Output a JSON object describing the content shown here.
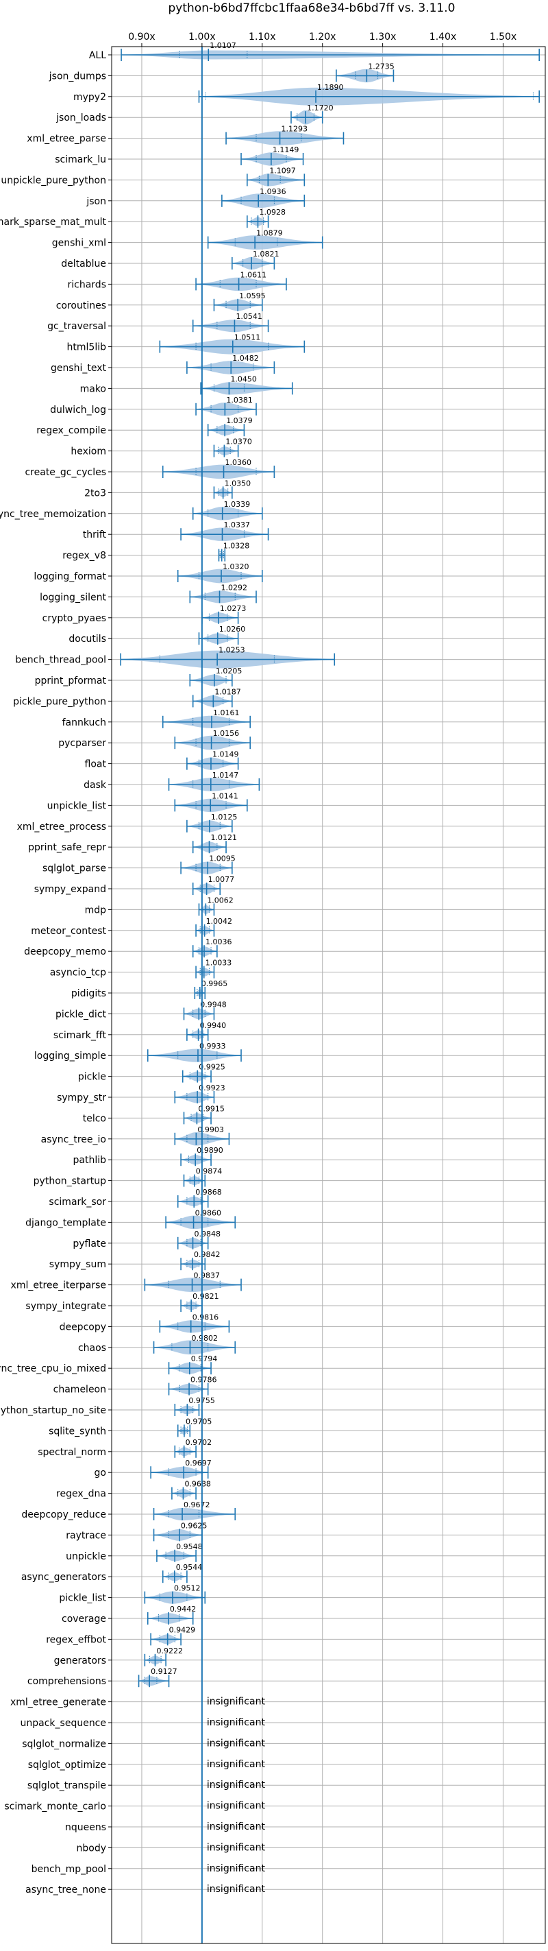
{
  "chart_data": {
    "type": "violin",
    "title": "python-b6bd7ffcbc1ffaa68e34-b6bd7ff vs. 3.11.0",
    "xlabel": "",
    "ylabel": "",
    "xlim": [
      0.85,
      1.57
    ],
    "xticks": [
      0.9,
      1.0,
      1.1,
      1.2,
      1.3,
      1.4,
      1.5
    ],
    "xtick_labels": [
      "0.90x",
      "1.00x",
      "1.10x",
      "1.20x",
      "1.30x",
      "1.40x",
      "1.50x"
    ],
    "grid": true,
    "reference_line": 1.0,
    "rows": [
      {
        "name": "ALL",
        "value": 1.0107,
        "label": "1.0107",
        "lo": 0.866,
        "hi": 1.56,
        "width": 0.5,
        "q1": 0.963,
        "q3": 1.075
      },
      {
        "name": "json_dumps",
        "value": 1.2735,
        "label": "1.2735",
        "lo": 1.223,
        "hi": 1.318,
        "width": 0.75,
        "q1": 1.255,
        "q3": 1.292
      },
      {
        "name": "mypy2",
        "value": 1.189,
        "label": "1.1890",
        "lo": 0.995,
        "hi": 1.56,
        "width": 1.0,
        "q1": 1.006,
        "q3": 1.55
      },
      {
        "name": "json_loads",
        "value": 1.172,
        "label": "1.1720",
        "lo": 1.148,
        "hi": 1.2,
        "width": 0.8,
        "q1": 1.158,
        "q3": 1.186
      },
      {
        "name": "xml_etree_parse",
        "value": 1.1293,
        "label": "1.1293",
        "lo": 1.04,
        "hi": 1.235,
        "width": 0.8,
        "q1": 1.09,
        "q3": 1.165
      },
      {
        "name": "scimark_lu",
        "value": 1.1149,
        "label": "1.1149",
        "lo": 1.065,
        "hi": 1.168,
        "width": 0.75,
        "q1": 1.09,
        "q3": 1.14
      },
      {
        "name": "unpickle_pure_python",
        "value": 1.1097,
        "label": "1.1097",
        "lo": 1.075,
        "hi": 1.17,
        "width": 0.7,
        "q1": 1.095,
        "q3": 1.13
      },
      {
        "name": "json",
        "value": 1.0936,
        "label": "1.0936",
        "lo": 1.033,
        "hi": 1.17,
        "width": 0.8,
        "q1": 1.065,
        "q3": 1.12
      },
      {
        "name": "scimark_sparse_mat_mult",
        "value": 1.0928,
        "label": "1.0928",
        "lo": 1.075,
        "hi": 1.11,
        "width": 0.5,
        "q1": 1.082,
        "q3": 1.102
      },
      {
        "name": "genshi_xml",
        "value": 1.0879,
        "label": "1.0879",
        "lo": 1.01,
        "hi": 1.2,
        "width": 0.8,
        "q1": 1.055,
        "q3": 1.125
      },
      {
        "name": "deltablue",
        "value": 1.0821,
        "label": "1.0821",
        "lo": 1.05,
        "hi": 1.12,
        "width": 0.7,
        "q1": 1.068,
        "q3": 1.1
      },
      {
        "name": "richards",
        "value": 1.0611,
        "label": "1.0611",
        "lo": 0.99,
        "hi": 1.14,
        "width": 0.75,
        "q1": 1.03,
        "q3": 1.09
      },
      {
        "name": "coroutines",
        "value": 1.0595,
        "label": "1.0595",
        "lo": 1.02,
        "hi": 1.1,
        "width": 0.65,
        "q1": 1.04,
        "q3": 1.08
      },
      {
        "name": "gc_traversal",
        "value": 1.0541,
        "label": "1.0541",
        "lo": 0.985,
        "hi": 1.11,
        "width": 0.7,
        "q1": 1.025,
        "q3": 1.08
      },
      {
        "name": "html5lib",
        "value": 1.0511,
        "label": "1.0511",
        "lo": 0.93,
        "hi": 1.17,
        "width": 0.85,
        "q1": 0.99,
        "q3": 1.11
      },
      {
        "name": "genshi_text",
        "value": 1.0482,
        "label": "1.0482",
        "lo": 0.975,
        "hi": 1.12,
        "width": 0.75,
        "q1": 1.015,
        "q3": 1.085
      },
      {
        "name": "mako",
        "value": 1.045,
        "label": "1.0450",
        "lo": 0.998,
        "hi": 1.15,
        "width": 0.7,
        "q1": 1.02,
        "q3": 1.07
      },
      {
        "name": "dulwich_log",
        "value": 1.0381,
        "label": "1.0381",
        "lo": 0.99,
        "hi": 1.09,
        "width": 0.75,
        "q1": 1.015,
        "q3": 1.06
      },
      {
        "name": "regex_compile",
        "value": 1.0379,
        "label": "1.0379",
        "lo": 1.01,
        "hi": 1.07,
        "width": 0.6,
        "q1": 1.025,
        "q3": 1.052
      },
      {
        "name": "hexiom",
        "value": 1.037,
        "label": "1.0370",
        "lo": 1.02,
        "hi": 1.06,
        "width": 0.5,
        "q1": 1.028,
        "q3": 1.047
      },
      {
        "name": "create_gc_cycles",
        "value": 1.036,
        "label": "1.0360",
        "lo": 0.935,
        "hi": 1.12,
        "width": 0.8,
        "q1": 0.99,
        "q3": 1.09
      },
      {
        "name": "2to3",
        "value": 1.035,
        "label": "1.0350",
        "lo": 1.02,
        "hi": 1.05,
        "width": 0.5,
        "q1": 1.028,
        "q3": 1.043
      },
      {
        "name": "async_tree_memoization",
        "value": 1.0339,
        "label": "1.0339",
        "lo": 0.985,
        "hi": 1.1,
        "width": 0.75,
        "q1": 1.01,
        "q3": 1.06
      },
      {
        "name": "thrift",
        "value": 1.0337,
        "label": "1.0337",
        "lo": 0.965,
        "hi": 1.11,
        "width": 0.75,
        "q1": 1.0,
        "q3": 1.07
      },
      {
        "name": "regex_v8",
        "value": 1.0328,
        "label": "1.0328",
        "lo": 1.028,
        "hi": 1.038,
        "width": 0.4,
        "q1": 1.03,
        "q3": 1.036
      },
      {
        "name": "logging_format",
        "value": 1.032,
        "label": "1.0320",
        "lo": 0.96,
        "hi": 1.1,
        "width": 0.8,
        "q1": 0.995,
        "q3": 1.065
      },
      {
        "name": "logging_silent",
        "value": 1.0292,
        "label": "1.0292",
        "lo": 0.98,
        "hi": 1.09,
        "width": 0.7,
        "q1": 1.005,
        "q3": 1.055
      },
      {
        "name": "crypto_pyaes",
        "value": 1.0273,
        "label": "1.0273",
        "lo": 1.0,
        "hi": 1.06,
        "width": 0.6,
        "q1": 1.012,
        "q3": 1.042
      },
      {
        "name": "docutils",
        "value": 1.026,
        "label": "1.0260",
        "lo": 0.995,
        "hi": 1.06,
        "width": 0.6,
        "q1": 1.01,
        "q3": 1.042
      },
      {
        "name": "bench_thread_pool",
        "value": 1.0253,
        "label": "1.0253",
        "lo": 0.865,
        "hi": 1.22,
        "width": 1.0,
        "q1": 0.93,
        "q3": 1.12
      },
      {
        "name": "pprint_pformat",
        "value": 1.0205,
        "label": "1.0205",
        "lo": 0.98,
        "hi": 1.05,
        "width": 0.65,
        "q1": 1.0,
        "q3": 1.04
      },
      {
        "name": "pickle_pure_python",
        "value": 1.0187,
        "label": "1.0187",
        "lo": 0.985,
        "hi": 1.05,
        "width": 0.65,
        "q1": 1.0,
        "q3": 1.035
      },
      {
        "name": "fannkuch",
        "value": 1.0161,
        "label": "1.0161",
        "lo": 0.935,
        "hi": 1.08,
        "width": 0.7,
        "q1": 0.985,
        "q3": 1.045
      },
      {
        "name": "pycparser",
        "value": 1.0156,
        "label": "1.0156",
        "lo": 0.955,
        "hi": 1.08,
        "width": 0.8,
        "q1": 0.99,
        "q3": 1.045
      },
      {
        "name": "float",
        "value": 1.0149,
        "label": "1.0149",
        "lo": 0.975,
        "hi": 1.06,
        "width": 0.7,
        "q1": 0.995,
        "q3": 1.035
      },
      {
        "name": "dask",
        "value": 1.0147,
        "label": "1.0147",
        "lo": 0.945,
        "hi": 1.095,
        "width": 0.75,
        "q1": 0.985,
        "q3": 1.045
      },
      {
        "name": "unpickle_list",
        "value": 1.0141,
        "label": "1.0141",
        "lo": 0.955,
        "hi": 1.075,
        "width": 0.75,
        "q1": 0.99,
        "q3": 1.04
      },
      {
        "name": "xml_etree_process",
        "value": 1.0125,
        "label": "1.0125",
        "lo": 0.975,
        "hi": 1.05,
        "width": 0.65,
        "q1": 0.995,
        "q3": 1.03
      },
      {
        "name": "pprint_safe_repr",
        "value": 1.0121,
        "label": "1.0121",
        "lo": 0.985,
        "hi": 1.04,
        "width": 0.6,
        "q1": 1.0,
        "q3": 1.025
      },
      {
        "name": "sqlglot_parse",
        "value": 1.0095,
        "label": "1.0095",
        "lo": 0.965,
        "hi": 1.05,
        "width": 0.7,
        "q1": 0.99,
        "q3": 1.03
      },
      {
        "name": "sympy_expand",
        "value": 1.0077,
        "label": "1.0077",
        "lo": 0.985,
        "hi": 1.03,
        "width": 0.6,
        "q1": 0.997,
        "q3": 1.02
      },
      {
        "name": "mdp",
        "value": 1.0062,
        "label": "1.0062",
        "lo": 0.995,
        "hi": 1.02,
        "width": 0.5,
        "q1": 1.0,
        "q3": 1.012
      },
      {
        "name": "meteor_contest",
        "value": 1.0042,
        "label": "1.0042",
        "lo": 0.99,
        "hi": 1.02,
        "width": 0.5,
        "q1": 0.997,
        "q3": 1.012
      },
      {
        "name": "deepcopy_memo",
        "value": 1.0036,
        "label": "1.0036",
        "lo": 0.985,
        "hi": 1.025,
        "width": 0.55,
        "q1": 0.995,
        "q3": 1.015
      },
      {
        "name": "asyncio_tcp",
        "value": 1.0033,
        "label": "1.0033",
        "lo": 0.99,
        "hi": 1.02,
        "width": 0.5,
        "q1": 0.997,
        "q3": 1.012
      },
      {
        "name": "pidigits",
        "value": 0.9965,
        "label": "0.9965",
        "lo": 0.988,
        "hi": 1.005,
        "width": 0.45,
        "q1": 0.992,
        "q3": 1.0
      },
      {
        "name": "pickle_dict",
        "value": 0.9948,
        "label": "0.9948",
        "lo": 0.97,
        "hi": 1.02,
        "width": 0.6,
        "q1": 0.985,
        "q3": 1.005
      },
      {
        "name": "scimark_fft",
        "value": 0.994,
        "label": "0.9940",
        "lo": 0.975,
        "hi": 1.01,
        "width": 0.5,
        "q1": 0.985,
        "q3": 1.002
      },
      {
        "name": "logging_simple",
        "value": 0.9933,
        "label": "0.9933",
        "lo": 0.91,
        "hi": 1.065,
        "width": 0.75,
        "q1": 0.96,
        "q3": 1.025
      },
      {
        "name": "pickle",
        "value": 0.9925,
        "label": "0.9925",
        "lo": 0.968,
        "hi": 1.015,
        "width": 0.55,
        "q1": 0.98,
        "q3": 1.005
      },
      {
        "name": "sympy_str",
        "value": 0.9923,
        "label": "0.9923",
        "lo": 0.955,
        "hi": 1.02,
        "width": 0.65,
        "q1": 0.975,
        "q3": 1.01
      },
      {
        "name": "telco",
        "value": 0.9915,
        "label": "0.9915",
        "lo": 0.97,
        "hi": 1.015,
        "width": 0.55,
        "q1": 0.982,
        "q3": 1.002
      },
      {
        "name": "async_tree_io",
        "value": 0.9903,
        "label": "0.9903",
        "lo": 0.955,
        "hi": 1.045,
        "width": 0.75,
        "q1": 0.975,
        "q3": 1.01
      },
      {
        "name": "pathlib",
        "value": 0.989,
        "label": "0.9890",
        "lo": 0.965,
        "hi": 1.015,
        "width": 0.55,
        "q1": 0.978,
        "q3": 1.0
      },
      {
        "name": "python_startup",
        "value": 0.9874,
        "label": "0.9874",
        "lo": 0.97,
        "hi": 1.005,
        "width": 0.5,
        "q1": 0.98,
        "q3": 0.995
      },
      {
        "name": "scimark_sor",
        "value": 0.9868,
        "label": "0.9868",
        "lo": 0.96,
        "hi": 1.01,
        "width": 0.55,
        "q1": 0.975,
        "q3": 0.998
      },
      {
        "name": "django_template",
        "value": 0.986,
        "label": "0.9860",
        "lo": 0.94,
        "hi": 1.055,
        "width": 0.75,
        "q1": 0.965,
        "q3": 1.01
      },
      {
        "name": "pyflate",
        "value": 0.9848,
        "label": "0.9848",
        "lo": 0.96,
        "hi": 1.01,
        "width": 0.6,
        "q1": 0.975,
        "q3": 0.998
      },
      {
        "name": "sympy_sum",
        "value": 0.9842,
        "label": "0.9842",
        "lo": 0.965,
        "hi": 1.005,
        "width": 0.5,
        "q1": 0.975,
        "q3": 0.995
      },
      {
        "name": "xml_etree_iterparse",
        "value": 0.9837,
        "label": "0.9837",
        "lo": 0.905,
        "hi": 1.065,
        "width": 0.8,
        "q1": 0.945,
        "q3": 1.03
      },
      {
        "name": "sympy_integrate",
        "value": 0.9821,
        "label": "0.9821",
        "lo": 0.965,
        "hi": 1.0,
        "width": 0.5,
        "q1": 0.975,
        "q3": 0.99
      },
      {
        "name": "deepcopy",
        "value": 0.9816,
        "label": "0.9816",
        "lo": 0.93,
        "hi": 1.045,
        "width": 0.7,
        "q1": 0.96,
        "q3": 1.005
      },
      {
        "name": "chaos",
        "value": 0.9802,
        "label": "0.9802",
        "lo": 0.92,
        "hi": 1.055,
        "width": 0.8,
        "q1": 0.95,
        "q3": 1.01
      },
      {
        "name": "async_tree_cpu_io_mixed",
        "value": 0.9794,
        "label": "0.9794",
        "lo": 0.945,
        "hi": 1.015,
        "width": 0.65,
        "q1": 0.962,
        "q3": 0.998
      },
      {
        "name": "chameleon",
        "value": 0.9786,
        "label": "0.9786",
        "lo": 0.945,
        "hi": 1.01,
        "width": 0.6,
        "q1": 0.963,
        "q3": 0.995
      },
      {
        "name": "python_startup_no_site",
        "value": 0.9755,
        "label": "0.9755",
        "lo": 0.955,
        "hi": 0.995,
        "width": 0.5,
        "q1": 0.965,
        "q3": 0.985
      },
      {
        "name": "sqlite_synth",
        "value": 0.9705,
        "label": "0.9705",
        "lo": 0.96,
        "hi": 0.98,
        "width": 0.45,
        "q1": 0.965,
        "q3": 0.976
      },
      {
        "name": "spectral_norm",
        "value": 0.9702,
        "label": "0.9702",
        "lo": 0.955,
        "hi": 0.99,
        "width": 0.5,
        "q1": 0.962,
        "q3": 0.98
      },
      {
        "name": "go",
        "value": 0.9697,
        "label": "0.9697",
        "lo": 0.915,
        "hi": 1.01,
        "width": 0.65,
        "q1": 0.945,
        "q3": 0.99
      },
      {
        "name": "regex_dna",
        "value": 0.9688,
        "label": "0.9688",
        "lo": 0.95,
        "hi": 0.99,
        "width": 0.5,
        "q1": 0.96,
        "q3": 0.98
      },
      {
        "name": "deepcopy_reduce",
        "value": 0.9672,
        "label": "0.9672",
        "lo": 0.92,
        "hi": 1.055,
        "width": 0.7,
        "q1": 0.945,
        "q3": 0.995
      },
      {
        "name": "raytrace",
        "value": 0.9625,
        "label": "0.9625",
        "lo": 0.92,
        "hi": 1.0,
        "width": 0.65,
        "q1": 0.945,
        "q3": 0.98
      },
      {
        "name": "unpickle",
        "value": 0.9548,
        "label": "0.9548",
        "lo": 0.925,
        "hi": 0.99,
        "width": 0.6,
        "q1": 0.94,
        "q3": 0.97
      },
      {
        "name": "async_generators",
        "value": 0.9544,
        "label": "0.9544",
        "lo": 0.935,
        "hi": 0.975,
        "width": 0.5,
        "q1": 0.945,
        "q3": 0.965
      },
      {
        "name": "pickle_list",
        "value": 0.9512,
        "label": "0.9512",
        "lo": 0.905,
        "hi": 1.005,
        "width": 0.7,
        "q1": 0.93,
        "q3": 0.975
      },
      {
        "name": "coverage",
        "value": 0.9442,
        "label": "0.9442",
        "lo": 0.91,
        "hi": 0.985,
        "width": 0.6,
        "q1": 0.928,
        "q3": 0.962
      },
      {
        "name": "regex_effbot",
        "value": 0.9429,
        "label": "0.9429",
        "lo": 0.915,
        "hi": 0.965,
        "width": 0.55,
        "q1": 0.93,
        "q3": 0.955
      },
      {
        "name": "generators",
        "value": 0.9222,
        "label": "0.9222",
        "lo": 0.905,
        "hi": 0.94,
        "width": 0.5,
        "q1": 0.913,
        "q3": 0.932
      },
      {
        "name": "comprehensions",
        "value": 0.9127,
        "label": "0.9127",
        "lo": 0.895,
        "hi": 0.945,
        "width": 0.55,
        "q1": 0.905,
        "q3": 0.925
      },
      {
        "name": "xml_etree_generate",
        "value": null,
        "label": "insignificant"
      },
      {
        "name": "unpack_sequence",
        "value": null,
        "label": "insignificant"
      },
      {
        "name": "sqlglot_normalize",
        "value": null,
        "label": "insignificant"
      },
      {
        "name": "sqlglot_optimize",
        "value": null,
        "label": "insignificant"
      },
      {
        "name": "sqlglot_transpile",
        "value": null,
        "label": "insignificant"
      },
      {
        "name": "scimark_monte_carlo",
        "value": null,
        "label": "insignificant"
      },
      {
        "name": "nqueens",
        "value": null,
        "label": "insignificant"
      },
      {
        "name": "nbody",
        "value": null,
        "label": "insignificant"
      },
      {
        "name": "bench_mp_pool",
        "value": null,
        "label": "insignificant"
      },
      {
        "name": "async_tree_none",
        "value": null,
        "label": "insignificant"
      }
    ],
    "colors": {
      "violin": "#aac8e4",
      "line": "#1f77b4",
      "grid": "#b0b0b0",
      "text": "#000000"
    }
  }
}
